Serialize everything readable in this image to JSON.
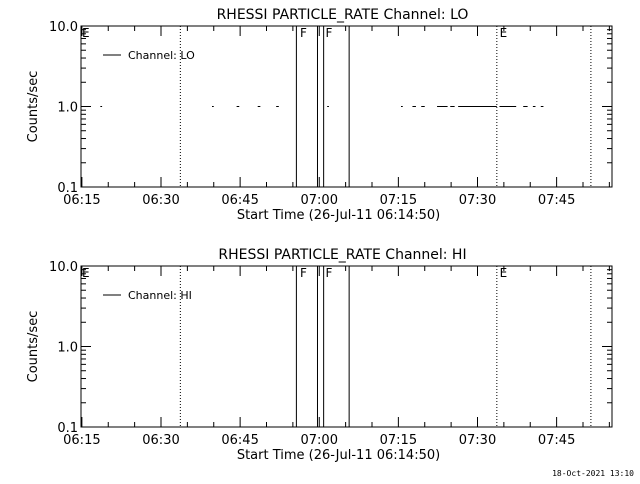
{
  "chart_data": [
    {
      "type": "line",
      "title": "RHESSI PARTICLE_RATE Channel: LO",
      "xlabel": "Start Time (26-Jul-11 06:14:50)",
      "ylabel": "Counts/sec",
      "yscale": "log",
      "ylim": [
        0.1,
        10.0
      ],
      "xlim": [
        "06:14:50",
        "07:55:30"
      ],
      "xticks": [
        "06:15",
        "06:30",
        "06:45",
        "07:00",
        "07:15",
        "07:30",
        "07:45"
      ],
      "yticks": [
        "0.1",
        "1.0",
        "10.0"
      ],
      "grid": false,
      "legend": {
        "position": "top-left",
        "entries": [
          "Channel: LO"
        ]
      },
      "annotations": [
        {
          "text": "E",
          "x": "06:14:50"
        },
        {
          "text": "F",
          "x": "06:56:10"
        },
        {
          "text": "F",
          "x": "07:01:00"
        },
        {
          "text": "E",
          "x": "07:34:00"
        }
      ],
      "vlines": {
        "solid": [
          "06:55:40",
          "06:59:40",
          "07:00:50",
          "07:05:40"
        ],
        "dotted": [
          "06:33:40",
          "07:33:40",
          "07:51:30"
        ]
      },
      "series": [
        {
          "name": "Channel: LO",
          "segments": [
            [
              "06:18:30",
              "06:18:50"
            ],
            [
              "06:39:40",
              "06:40:00"
            ],
            [
              "06:44:20",
              "06:44:50"
            ],
            [
              "06:48:20",
              "06:48:50"
            ],
            [
              "06:51:50",
              "06:52:20"
            ],
            [
              "07:01:30",
              "07:01:50"
            ],
            [
              "07:15:30",
              "07:15:50"
            ],
            [
              "07:17:40",
              "07:18:20"
            ],
            [
              "07:19:20",
              "07:20:00"
            ],
            [
              "07:22:20",
              "07:24:20"
            ],
            [
              "07:24:50",
              "07:25:40"
            ],
            [
              "07:26:20",
              "07:33:40"
            ],
            [
              "07:34:10",
              "07:37:20"
            ],
            [
              "07:38:40",
              "07:39:30"
            ],
            [
              "07:40:30",
              "07:41:00"
            ],
            [
              "07:42:00",
              "07:42:30"
            ]
          ],
          "y": 1.0
        }
      ]
    },
    {
      "type": "line",
      "title": "RHESSI PARTICLE_RATE Channel: HI",
      "xlabel": "Start Time (26-Jul-11 06:14:50)",
      "ylabel": "Counts/sec",
      "yscale": "log",
      "ylim": [
        0.1,
        10.0
      ],
      "xlim": [
        "06:14:50",
        "07:55:30"
      ],
      "xticks": [
        "06:15",
        "06:30",
        "06:45",
        "07:00",
        "07:15",
        "07:30",
        "07:45"
      ],
      "yticks": [
        "0.1",
        "1.0",
        "10.0"
      ],
      "grid": false,
      "legend": {
        "position": "top-left",
        "entries": [
          "Channel: HI"
        ]
      },
      "annotations": [
        {
          "text": "E",
          "x": "06:14:50"
        },
        {
          "text": "F",
          "x": "06:56:10"
        },
        {
          "text": "F",
          "x": "07:01:00"
        },
        {
          "text": "E",
          "x": "07:34:00"
        }
      ],
      "vlines": {
        "solid": [
          "06:55:40",
          "06:59:40",
          "07:00:50",
          "07:05:40"
        ],
        "dotted": [
          "06:33:40",
          "07:33:40",
          "07:51:30"
        ]
      },
      "series": [
        {
          "name": "Channel: HI",
          "segments": [],
          "y": 1.0
        }
      ]
    }
  ],
  "footer": {
    "timestamp": "18-Oct-2021 13:10"
  }
}
